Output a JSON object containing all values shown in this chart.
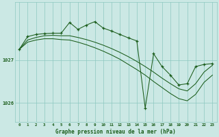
{
  "title": "Graphe pression niveau de la mer (hPa)",
  "bg_color": "#cbe8e4",
  "line_color": "#1a5c1a",
  "grid_color": "#8cc8c0",
  "xlim": [
    -0.5,
    23.5
  ],
  "ylim": [
    1025.55,
    1028.35
  ],
  "yticks": [
    1026,
    1027
  ],
  "xticks": [
    0,
    1,
    2,
    3,
    4,
    5,
    6,
    7,
    8,
    9,
    10,
    11,
    12,
    13,
    14,
    15,
    16,
    17,
    18,
    19,
    20,
    21,
    22,
    23
  ],
  "hours": [
    0,
    1,
    2,
    3,
    4,
    5,
    6,
    7,
    8,
    9,
    10,
    11,
    12,
    13,
    14,
    15,
    16,
    17,
    18,
    19,
    20,
    21,
    22,
    23
  ],
  "pressure": [
    1027.25,
    1027.55,
    1027.6,
    1027.62,
    1027.63,
    1027.63,
    1027.88,
    1027.72,
    1027.82,
    1027.9,
    1027.75,
    1027.68,
    1027.6,
    1027.52,
    1027.45,
    1025.88,
    1027.15,
    1026.85,
    1026.65,
    1026.42,
    1026.45,
    1026.85,
    1026.9,
    1026.92
  ],
  "smooth_upper": [
    1027.25,
    1027.47,
    1027.53,
    1027.57,
    1027.58,
    1027.57,
    1027.57,
    1027.53,
    1027.48,
    1027.42,
    1027.35,
    1027.27,
    1027.18,
    1027.08,
    1026.97,
    1026.85,
    1026.72,
    1026.58,
    1026.45,
    1026.33,
    1026.28,
    1026.45,
    1026.72,
    1026.88
  ],
  "smooth_lower": [
    1027.25,
    1027.42,
    1027.47,
    1027.5,
    1027.5,
    1027.48,
    1027.47,
    1027.42,
    1027.36,
    1027.29,
    1027.21,
    1027.12,
    1027.02,
    1026.9,
    1026.78,
    1026.65,
    1026.5,
    1026.36,
    1026.22,
    1026.1,
    1026.05,
    1026.2,
    1026.48,
    1026.65
  ]
}
